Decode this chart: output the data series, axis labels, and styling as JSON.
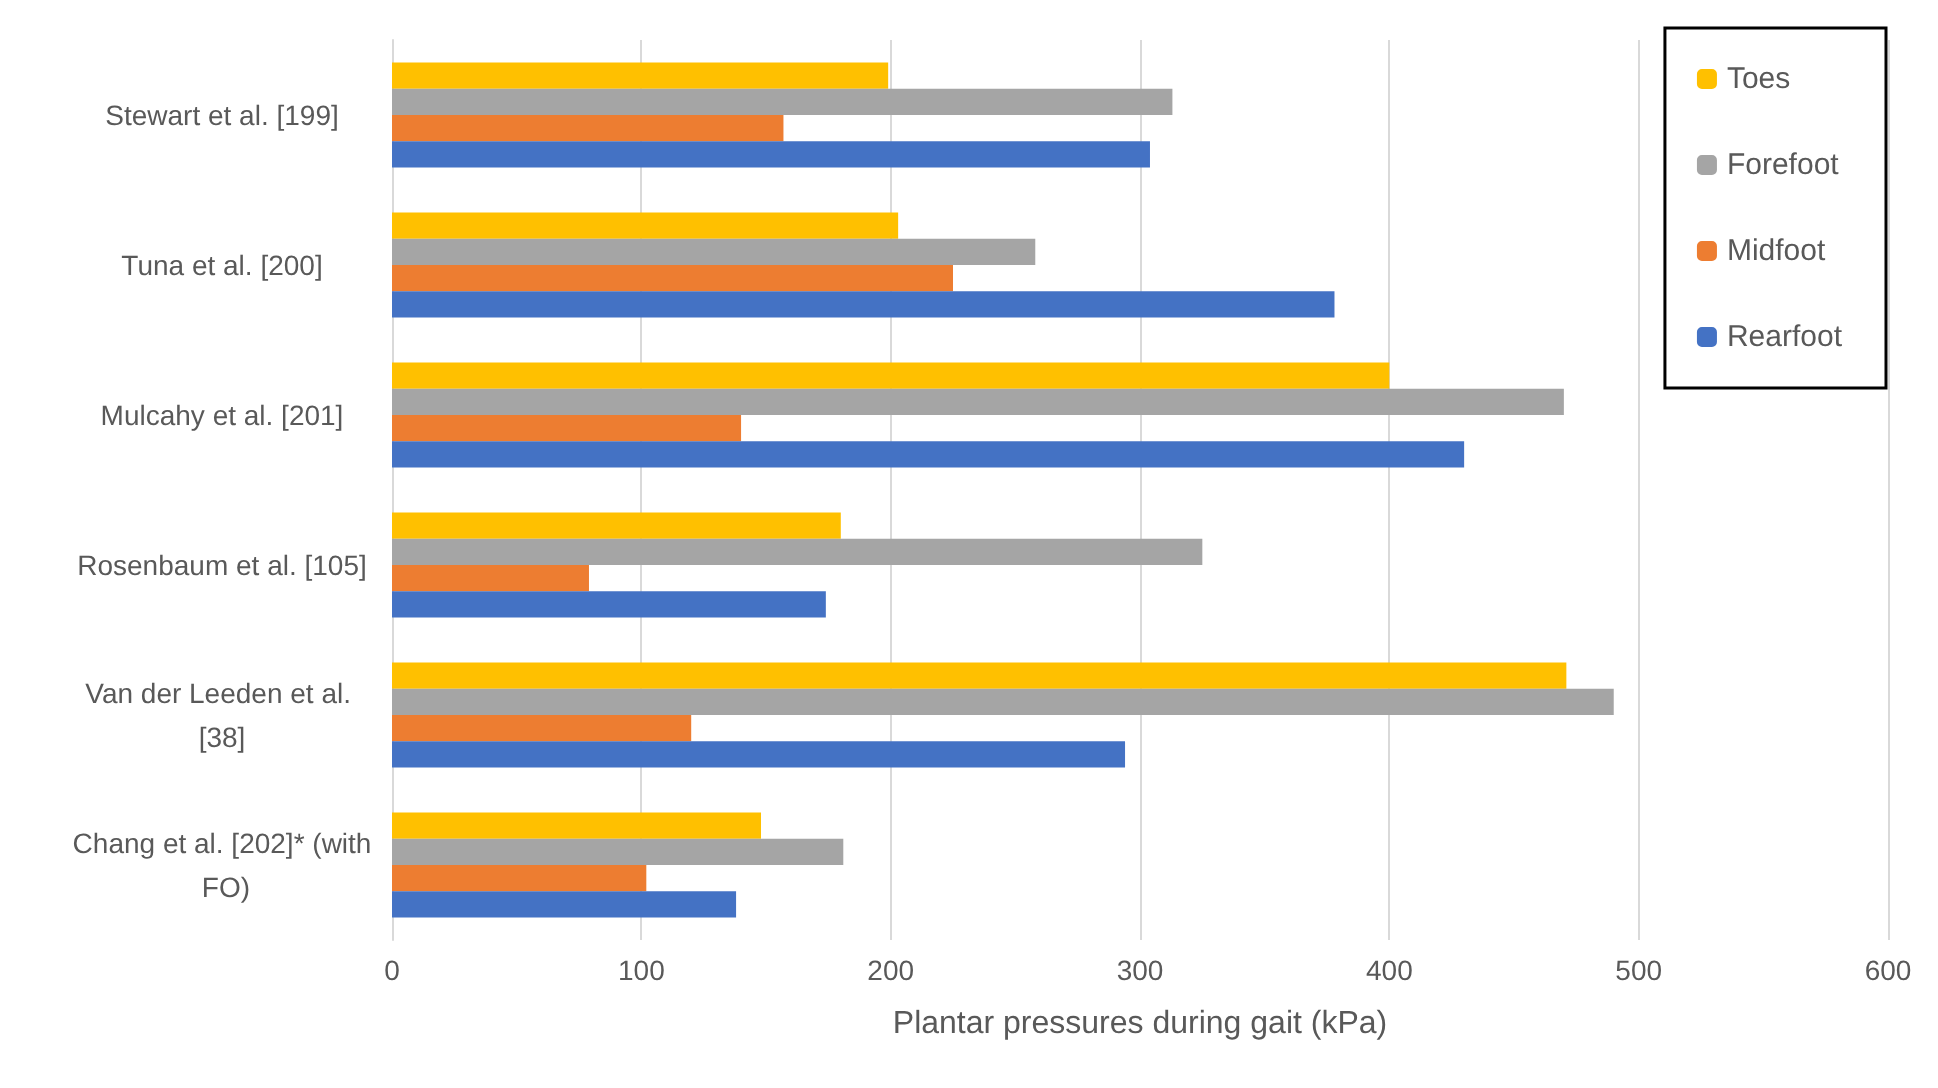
{
  "chart_data": {
    "type": "bar",
    "orientation": "horizontal",
    "xlabel": "Plantar pressures during gait (kPa)",
    "categories": [
      "Stewart et al. [199]",
      "Tuna et al. [200]",
      "Mulcahy et al. [201]",
      "Rosenbaum et al. [105]",
      "Van der Leeden et al. [38]",
      "Chang et al. [202]* (with FO)"
    ],
    "series": [
      {
        "name": "Toes",
        "color": "#ffc000",
        "values": [
          199,
          203,
          400,
          180,
          471,
          148
        ]
      },
      {
        "name": "Forefoot",
        "color": "#a5a5a5",
        "values": [
          313,
          258,
          470,
          325,
          490,
          181
        ]
      },
      {
        "name": "Midfoot",
        "color": "#ed7d31",
        "values": [
          157,
          225,
          140,
          79,
          120,
          102
        ]
      },
      {
        "name": "Rearfoot",
        "color": "#4472c4",
        "values": [
          304,
          378,
          430,
          174,
          294,
          138
        ]
      }
    ],
    "xlim": [
      0,
      600
    ],
    "xticks": [
      0,
      100,
      200,
      300,
      400,
      500,
      600
    ],
    "grid": "x",
    "legend": "top right"
  }
}
